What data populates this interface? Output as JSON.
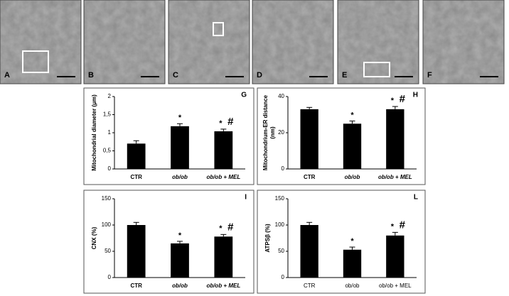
{
  "micrographs": {
    "labels": [
      "A",
      "B",
      "C",
      "D",
      "E",
      "F"
    ]
  },
  "chart_data": [
    {
      "type": "bar",
      "panel": "G",
      "ylabel": "Mitochondrial diameter (μm)",
      "categories": [
        "CTR",
        "ob/ob",
        "ob/ob + MEL"
      ],
      "series": [
        {
          "color": "#000000",
          "values": [
            0.7,
            1.18,
            1.04
          ],
          "errors": [
            0.08,
            0.07,
            0.06
          ]
        }
      ],
      "ylim": [
        0,
        2
      ],
      "yticks": [
        0,
        {
          "value": 0.5,
          "label": "0,5"
        },
        1,
        {
          "value": 1.5,
          "label": "1,5"
        },
        2
      ],
      "annotations": [
        {
          "text": "*",
          "category": "ob/ob"
        },
        {
          "text": "*",
          "category": "ob/ob + MEL"
        },
        {
          "text": "#",
          "category": "ob/ob + MEL"
        }
      ],
      "italic_categories": true
    },
    {
      "type": "bar",
      "panel": "H",
      "ylabel": [
        "Mitochondrium-ER distance",
        "(nm)"
      ],
      "categories": [
        "CTR",
        "ob/ob",
        "ob/ob + MEL"
      ],
      "series": [
        {
          "color": "#000000",
          "values": [
            33,
            25,
            33
          ],
          "errors": [
            1,
            1.5,
            1.5
          ]
        }
      ],
      "ylim": [
        0,
        40
      ],
      "yticks": [
        0,
        20,
        40
      ],
      "annotations": [
        {
          "text": "*",
          "category": "ob/ob"
        },
        {
          "text": "*",
          "category": "ob/ob + MEL"
        },
        {
          "text": "#",
          "category": "ob/ob + MEL"
        }
      ],
      "italic_categories": true
    },
    {
      "type": "bar",
      "panel": "I",
      "ylabel": "CNX (%)",
      "categories": [
        "CTR",
        "ob/ob",
        "ob/ob + MEL"
      ],
      "series": [
        {
          "color": "#000000",
          "values": [
            100,
            65,
            78
          ],
          "errors": [
            5,
            4,
            4
          ]
        }
      ],
      "ylim": [
        0,
        150
      ],
      "yticks": [
        0,
        50,
        100,
        150
      ],
      "annotations": [
        {
          "text": "*",
          "category": "ob/ob"
        },
        {
          "text": "*",
          "category": "ob/ob + MEL"
        },
        {
          "text": "#",
          "category": "ob/ob + MEL"
        }
      ],
      "italic_categories": true
    },
    {
      "type": "bar",
      "panel": "L",
      "ylabel": "ATPSβ (%)",
      "categories": [
        "CTR",
        "ob/ob",
        "ob/ob + MEL"
      ],
      "series": [
        {
          "color": "#000000",
          "values": [
            100,
            53,
            80
          ],
          "errors": [
            5,
            5,
            6
          ]
        }
      ],
      "ylim": [
        0,
        150
      ],
      "yticks": [
        0,
        50,
        100,
        150
      ],
      "annotations": [
        {
          "text": "*",
          "category": "ob/ob"
        },
        {
          "text": "*",
          "category": "ob/ob + MEL"
        },
        {
          "text": "#",
          "category": "ob/ob + MEL"
        }
      ],
      "italic_categories": false
    }
  ]
}
